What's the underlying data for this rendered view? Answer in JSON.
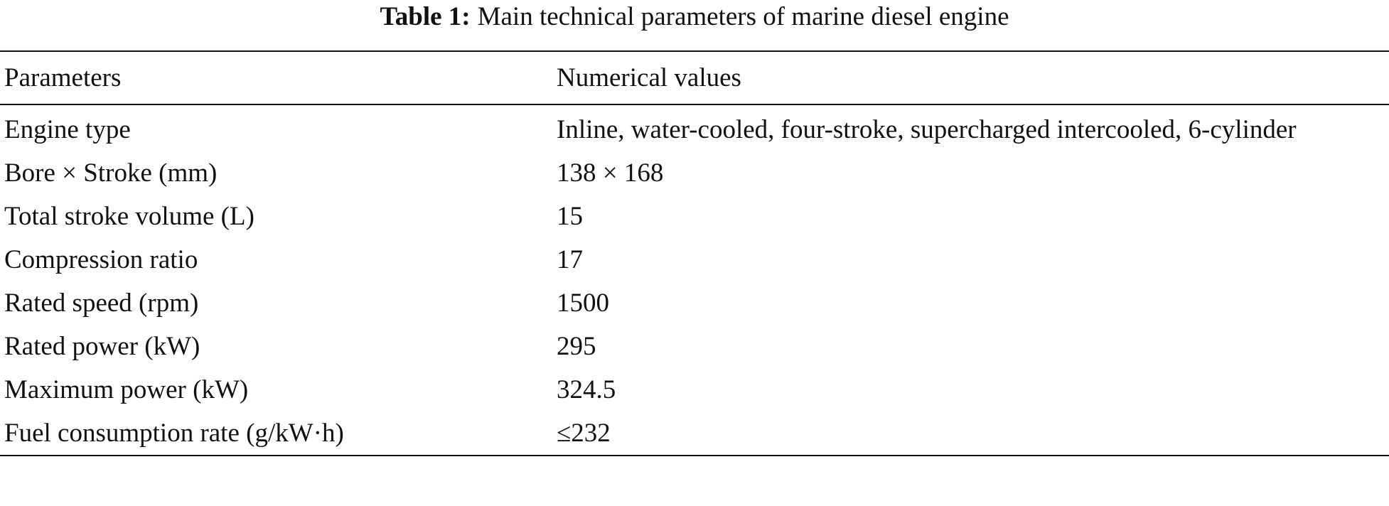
{
  "caption": {
    "label": "Table 1:",
    "text": "Main technical parameters of marine diesel engine"
  },
  "table": {
    "header": [
      "Parameters",
      "Numerical values"
    ],
    "rows": [
      [
        "Engine type",
        "Inline, water-cooled, four-stroke, supercharged intercooled, 6-cylinder"
      ],
      [
        "Bore × Stroke (mm)",
        "138 × 168"
      ],
      [
        "Total stroke volume (L)",
        "15"
      ],
      [
        "Compression ratio",
        "17"
      ],
      [
        "Rated speed (rpm)",
        "1500"
      ],
      [
        "Rated power (kW)",
        "295"
      ],
      [
        "Maximum power (kW)",
        "324.5"
      ],
      [
        "Fuel consumption rate (g/kW·h)",
        "≤232"
      ]
    ]
  }
}
